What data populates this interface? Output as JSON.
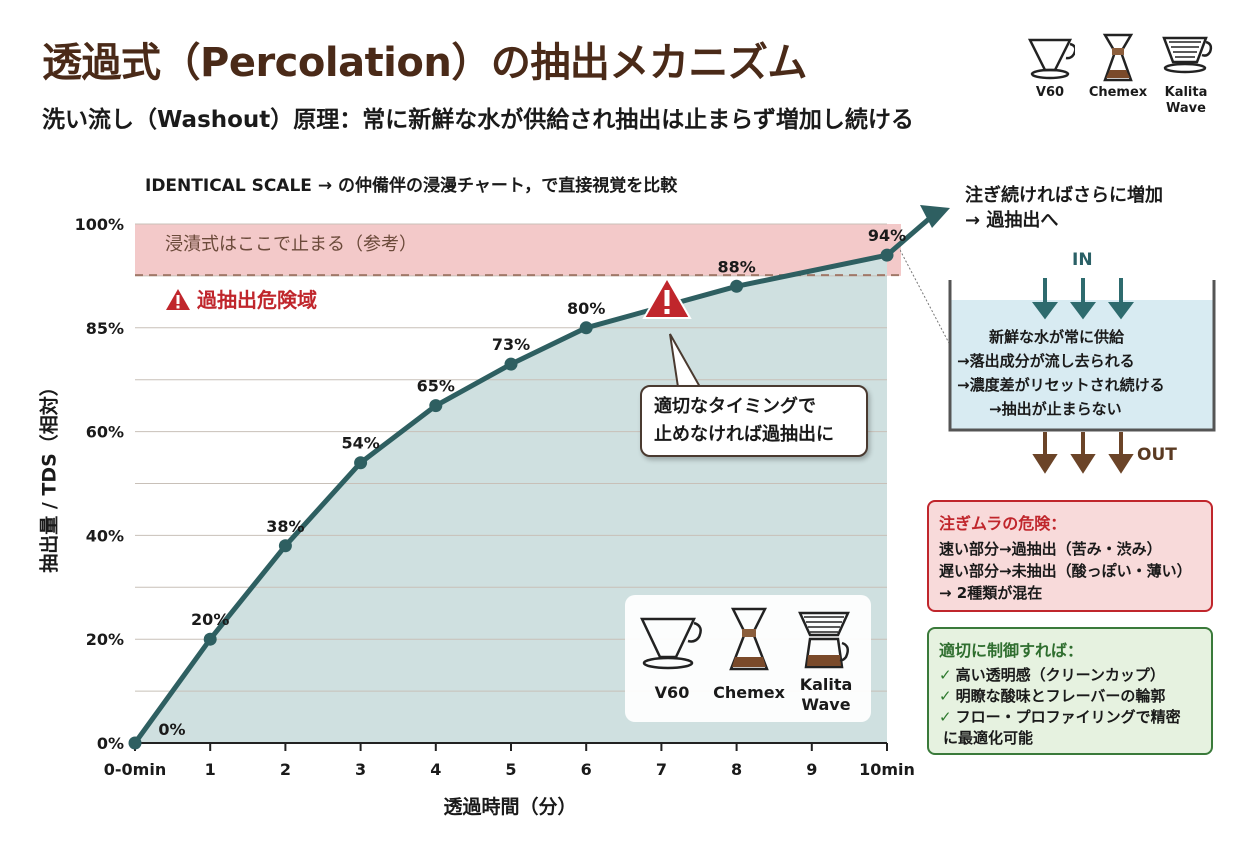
{
  "title": "透過式（Percolation）の抽出メカニズム",
  "subtitle": "洗い流し（Washout）原理：常に新鮮な水が供給され抽出は止まらず増加し続ける",
  "chart_subtitle": "IDENTICAL SCALE → の仲備伴の浸漫チャート，で直接視覚を比較",
  "brewers": [
    "V60",
    "Chemex",
    "Kalita Wave"
  ],
  "reference_label": "浸漬式はここで止まる（参考）",
  "danger_label": "過抽出危険域",
  "callout": [
    "適切なタイミングで",
    "止めなければ過抽出に"
  ],
  "arrow_note": [
    "注ぎ続ければさらに増加",
    "→ 過抽出へ"
  ],
  "flow": {
    "in": "IN",
    "out": "OUT",
    "lines": [
      "新鮮な水が常に供給",
      "→落出成分が流し去られる",
      "→濃度差がリセットされ続ける",
      "→抽出が止まらない"
    ]
  },
  "warning_box": {
    "title": "注ぎムラの危険：",
    "lines": [
      "速い部分→過抽出（苦み・渋み）",
      "遅い部分→未抽出（酸っぽい・薄い）",
      "→ 2種類が混在"
    ]
  },
  "good_box": {
    "title": "適切に制御すれば：",
    "check": "✓",
    "lines": [
      "高い透明感（クリーンカップ）",
      "明瞭な酸味とフレーバーの輪郭",
      "フロー・プロファイリングで精密"
    ],
    "continuation": "に最適化可能"
  },
  "colors": {
    "line": "#2e5f61",
    "area": "#cfe0e0",
    "danger_band": "#f3c9c9",
    "danger_text": "#c0262c",
    "title": "#4a2a18"
  },
  "chart_data": {
    "type": "area",
    "xlabel": "透過時間（分）",
    "ylabel": "抽出量 / TDS（相対）",
    "x": [
      0,
      1,
      2,
      3,
      4,
      5,
      6,
      8,
      10
    ],
    "y": [
      0,
      20,
      38,
      54,
      65,
      73,
      80,
      88,
      94
    ],
    "data_labels": [
      "0%",
      "20%",
      "38%",
      "54%",
      "65%",
      "73%",
      "80%",
      "88%",
      "94%"
    ],
    "x_tick_labels": [
      "0-0min",
      "1",
      "2",
      "3",
      "4",
      "5",
      "6",
      "7",
      "8",
      "9",
      "10min"
    ],
    "y_tick_labels": [
      "0%",
      "20%",
      "40%",
      "60%",
      "85%",
      "100%"
    ],
    "xlim": [
      0,
      10
    ],
    "ylim": [
      0,
      100
    ],
    "reference_level": 94,
    "danger_zone": [
      85,
      100
    ],
    "warning_at_x": 7,
    "grid": true
  }
}
